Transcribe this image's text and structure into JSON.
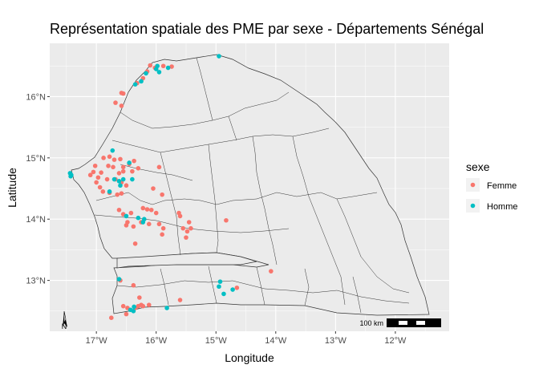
{
  "title": "Représentation spatiale des PME par sexe - Départements Sénégal",
  "colors": {
    "panel": "#ebebeb",
    "grid": "#ffffff",
    "country_fill": "#ebebeb",
    "border": "#333333",
    "femme": "#f8766d",
    "homme": "#00bfc4"
  },
  "chart_data": {
    "type": "scatter",
    "title": "Représentation spatiale des PME par sexe - Départements Sénégal",
    "xlabel": "Longitude",
    "ylabel": "Latitude",
    "xlim": [
      -17.78,
      -11.1
    ],
    "ylim": [
      12.17,
      16.87
    ],
    "x_ticks": [
      {
        "value": -17,
        "label": "17°W"
      },
      {
        "value": -16,
        "label": "16°W"
      },
      {
        "value": -15,
        "label": "15°W"
      },
      {
        "value": -14,
        "label": "14°W"
      },
      {
        "value": -13,
        "label": "13°W"
      },
      {
        "value": -12,
        "label": "12°W"
      }
    ],
    "y_ticks": [
      {
        "value": 13,
        "label": "13°N"
      },
      {
        "value": 14,
        "label": "14°N"
      },
      {
        "value": 15,
        "label": "15°N"
      },
      {
        "value": 16,
        "label": "16°N"
      }
    ],
    "grid": true,
    "legend": {
      "title": "sexe",
      "position": "right"
    },
    "series": [
      {
        "name": "Femme",
        "color": "#f8766d",
        "points": [
          [
            -16.1,
            16.51
          ],
          [
            -16.02,
            16.47
          ],
          [
            -15.88,
            16.5
          ],
          [
            -15.74,
            16.49
          ],
          [
            -16.15,
            16.41
          ],
          [
            -16.22,
            16.3
          ],
          [
            -16.32,
            16.22
          ],
          [
            -16.55,
            16.05
          ],
          [
            -16.58,
            16.06
          ],
          [
            -16.68,
            15.9
          ],
          [
            -16.58,
            15.85
          ],
          [
            -17.02,
            14.87
          ],
          [
            -17.05,
            14.77
          ],
          [
            -16.92,
            14.76
          ],
          [
            -16.97,
            14.68
          ],
          [
            -17.1,
            14.72
          ],
          [
            -17.0,
            14.6
          ],
          [
            -16.94,
            14.52
          ],
          [
            -16.89,
            14.45
          ],
          [
            -16.78,
            14.43
          ],
          [
            -16.65,
            14.4
          ],
          [
            -16.58,
            14.42
          ],
          [
            -16.8,
            14.87
          ],
          [
            -16.72,
            14.85
          ],
          [
            -16.55,
            14.85
          ],
          [
            -16.45,
            14.9
          ],
          [
            -16.37,
            14.95
          ],
          [
            -16.7,
            14.97
          ],
          [
            -16.6,
            14.98
          ],
          [
            -16.55,
            14.78
          ],
          [
            -16.62,
            14.75
          ],
          [
            -16.4,
            14.78
          ],
          [
            -16.3,
            14.83
          ],
          [
            -16.68,
            14.65
          ],
          [
            -16.58,
            14.6
          ],
          [
            -16.5,
            14.55
          ],
          [
            -16.82,
            14.65
          ],
          [
            -16.88,
            15.0
          ],
          [
            -16.78,
            15.02
          ],
          [
            -15.95,
            14.85
          ],
          [
            -16.05,
            14.5
          ],
          [
            -15.9,
            14.4
          ],
          [
            -16.62,
            14.15
          ],
          [
            -16.55,
            14.08
          ],
          [
            -16.42,
            14.1
          ],
          [
            -16.48,
            13.95
          ],
          [
            -16.5,
            13.9
          ],
          [
            -16.38,
            13.88
          ],
          [
            -16.35,
            13.6
          ],
          [
            -16.22,
            14.18
          ],
          [
            -16.15,
            14.16
          ],
          [
            -16.08,
            14.15
          ],
          [
            -16.0,
            14.1
          ],
          [
            -16.25,
            13.95
          ],
          [
            -16.12,
            13.92
          ],
          [
            -15.95,
            13.92
          ],
          [
            -15.88,
            13.85
          ],
          [
            -15.9,
            13.75
          ],
          [
            -15.62,
            14.1
          ],
          [
            -15.6,
            14.05
          ],
          [
            -15.55,
            13.85
          ],
          [
            -15.45,
            13.95
          ],
          [
            -15.48,
            13.8
          ],
          [
            -15.5,
            13.7
          ],
          [
            -15.42,
            13.85
          ],
          [
            -14.83,
            13.98
          ],
          [
            -16.6,
            13.0
          ],
          [
            -16.38,
            12.92
          ],
          [
            -16.55,
            12.58
          ],
          [
            -16.5,
            12.45
          ],
          [
            -16.48,
            12.55
          ],
          [
            -16.35,
            12.55
          ],
          [
            -16.3,
            12.58
          ],
          [
            -16.28,
            12.72
          ],
          [
            -16.25,
            12.6
          ],
          [
            -16.22,
            12.58
          ],
          [
            -16.12,
            12.6
          ],
          [
            -15.6,
            12.68
          ],
          [
            -16.75,
            12.39
          ],
          [
            -14.08,
            13.15
          ],
          [
            -14.65,
            12.88
          ]
        ]
      },
      {
        "name": "Homme",
        "color": "#00bfc4",
        "points": [
          [
            -14.95,
            16.66
          ],
          [
            -15.98,
            16.5
          ],
          [
            -16.0,
            16.45
          ],
          [
            -15.95,
            16.4
          ],
          [
            -15.8,
            16.47
          ],
          [
            -16.17,
            16.38
          ],
          [
            -16.25,
            16.25
          ],
          [
            -16.35,
            16.2
          ],
          [
            -17.44,
            14.75
          ],
          [
            -17.43,
            14.7
          ],
          [
            -17.42,
            14.72
          ],
          [
            -16.73,
            15.12
          ],
          [
            -16.7,
            14.65
          ],
          [
            -16.78,
            14.45
          ],
          [
            -16.6,
            14.55
          ],
          [
            -16.62,
            14.62
          ],
          [
            -16.4,
            14.65
          ],
          [
            -16.55,
            14.65
          ],
          [
            -16.45,
            14.92
          ],
          [
            -16.3,
            14.02
          ],
          [
            -16.22,
            13.95
          ],
          [
            -16.2,
            14.0
          ],
          [
            -16.5,
            14.05
          ],
          [
            -16.62,
            13.02
          ],
          [
            -16.38,
            12.5
          ],
          [
            -16.43,
            12.52
          ],
          [
            -16.37,
            12.57
          ],
          [
            -15.82,
            12.55
          ],
          [
            -14.95,
            12.9
          ],
          [
            -14.93,
            12.98
          ],
          [
            -14.72,
            12.85
          ],
          [
            -14.87,
            12.78
          ]
        ]
      }
    ]
  },
  "scale_bar": {
    "label": "100 km"
  },
  "north_arrow": {
    "label": "N"
  }
}
